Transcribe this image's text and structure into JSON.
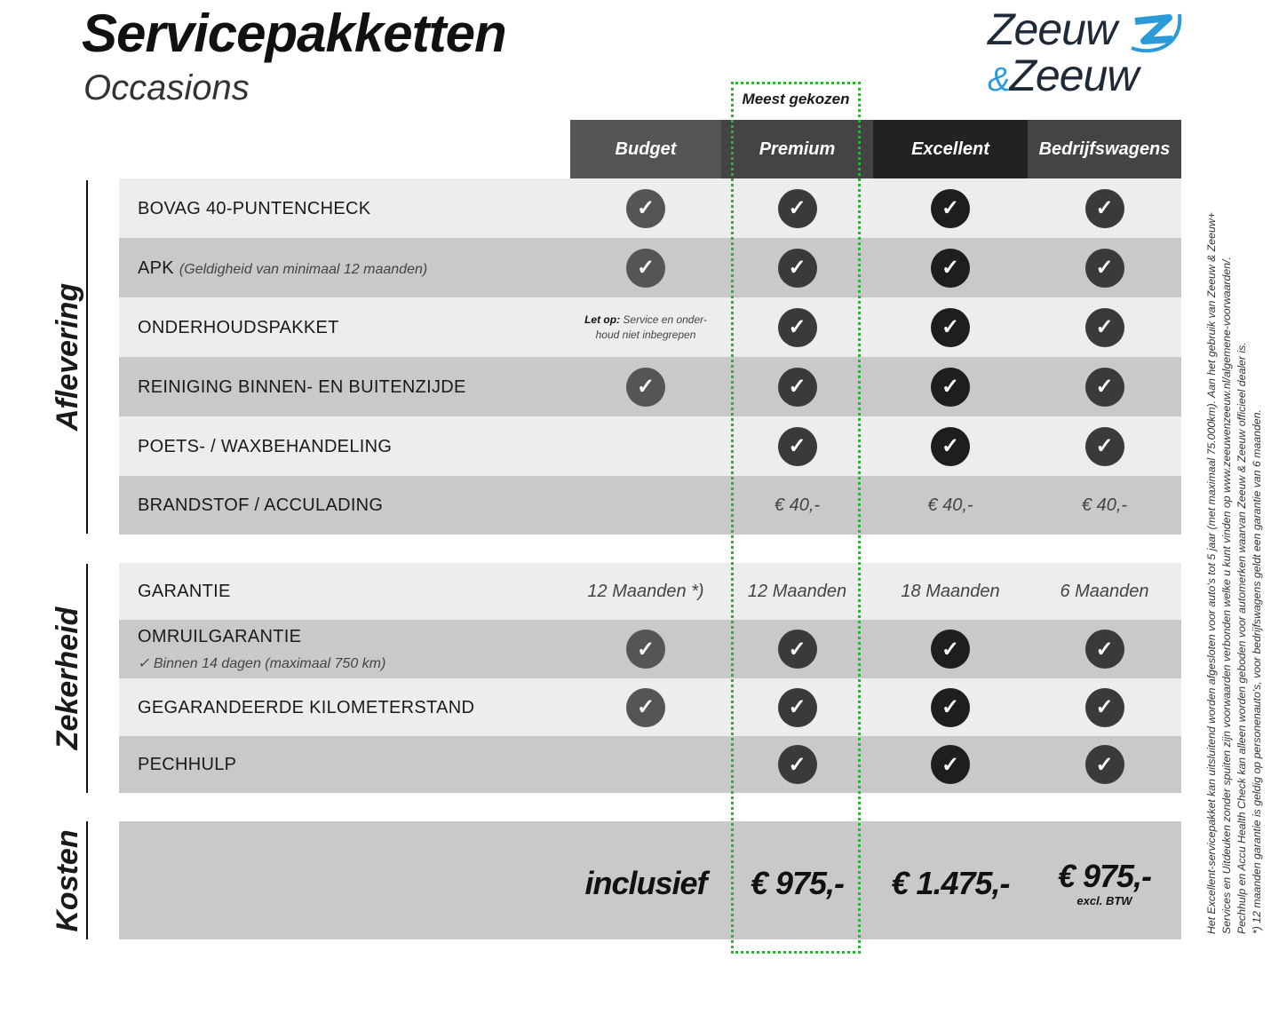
{
  "header": {
    "title": "Servicepakketten",
    "subtitle": "Occasions"
  },
  "logo": {
    "line1": "Zeeuw",
    "amp": "&",
    "line2": "Zeeuw",
    "accent": "#2a9ad8",
    "dark": "#1f2a38"
  },
  "highlight": {
    "label": "Meest gekozen",
    "color": "#2fb135"
  },
  "columns": [
    {
      "name": "Budget",
      "header_color": "#555555",
      "check_color": "#555555"
    },
    {
      "name": "Premium",
      "header_color": "#444444",
      "check_color": "#3a3a3a"
    },
    {
      "name": "Excellent",
      "header_color": "#222222",
      "check_color": "#1e1e1e"
    },
    {
      "name": "Bedrijfswagens",
      "header_color": "#444444",
      "check_color": "#3a3a3a"
    }
  ],
  "sections": [
    {
      "name": "Aflevering",
      "rows": [
        {
          "label": "BOVAG 40-PUNTENCHECK",
          "cells": [
            {
              "check": true
            },
            {
              "check": true
            },
            {
              "check": true
            },
            {
              "check": true
            }
          ]
        },
        {
          "label": "APK",
          "sub": "(Geldigheid van minimaal 12 maanden)",
          "cells": [
            {
              "check": true
            },
            {
              "check": true
            },
            {
              "check": true
            },
            {
              "check": true
            }
          ]
        },
        {
          "label": "ONDERHOUDSPAKKET",
          "cells": [
            {
              "note_bold": "Let op:",
              "note": "Service en onder-houd niet inbegrepen"
            },
            {
              "check": true
            },
            {
              "check": true
            },
            {
              "check": true
            }
          ]
        },
        {
          "label": "REINIGING BINNEN- EN BUITENZIJDE",
          "cells": [
            {
              "check": true
            },
            {
              "check": true
            },
            {
              "check": true
            },
            {
              "check": true
            }
          ]
        },
        {
          "label": "POETS- / WAXBEHANDELING",
          "cells": [
            {},
            {
              "check": true
            },
            {
              "check": true
            },
            {
              "check": true
            }
          ]
        },
        {
          "label": "BRANDSTOF / ACCULADING",
          "cells": [
            {},
            {
              "text": "€ 40,-"
            },
            {
              "text": "€ 40,-"
            },
            {
              "text": "€ 40,-"
            }
          ]
        }
      ]
    },
    {
      "name": "Zekerheid",
      "rows": [
        {
          "label": "GARANTIE",
          "cells": [
            {
              "text": "12 Maanden *)"
            },
            {
              "text": "12 Maanden"
            },
            {
              "text": "18 Maanden"
            },
            {
              "text": "6 Maanden"
            }
          ]
        },
        {
          "label": "OMRUILGARANTIE",
          "sub2": "✓   Binnen 14 dagen (maximaal 750 km)",
          "cells": [
            {
              "check": true
            },
            {
              "check": true
            },
            {
              "check": true
            },
            {
              "check": true
            }
          ]
        },
        {
          "label": "GEGARANDEERDE KILOMETERSTAND",
          "cells": [
            {
              "check": true
            },
            {
              "check": true
            },
            {
              "check": true
            },
            {
              "check": true
            }
          ]
        },
        {
          "label": "PECHHULP",
          "cells": [
            {},
            {
              "check": true
            },
            {
              "check": true
            },
            {
              "check": true
            }
          ]
        }
      ]
    },
    {
      "name": "Kosten",
      "rows": [
        {
          "label": "",
          "cells": [
            {
              "price": "inclusief"
            },
            {
              "price": "€ 975,-"
            },
            {
              "price": "€ 1.475,-"
            },
            {
              "price": "€ 975,-",
              "price_note": "excl. BTW"
            }
          ]
        }
      ]
    }
  ],
  "footnotes": [
    "Het Excellent-servicepakket kan uitsluitend worden afgesloten voor auto's tot 5 jaar (met maximaal 75.000km). Aan het gebruik van Zeeuw & Zeeuw+",
    "Services en Uitdeuken zonder spuiten zijn voorwaarden verbonden welke u kunt vinden op www.zeeuwenzeeuw.nl/algemene-voorwaarden/.",
    "Pechhulp en Accu Health Check kan alleen worden geboden voor automerken waarvan Zeeuw & Zeeuw officieel dealer is.",
    "*) 12 maanden garantie is geldig op personenauto's, voor bedrijfswagens geldt een garantie van 6 maanden."
  ]
}
